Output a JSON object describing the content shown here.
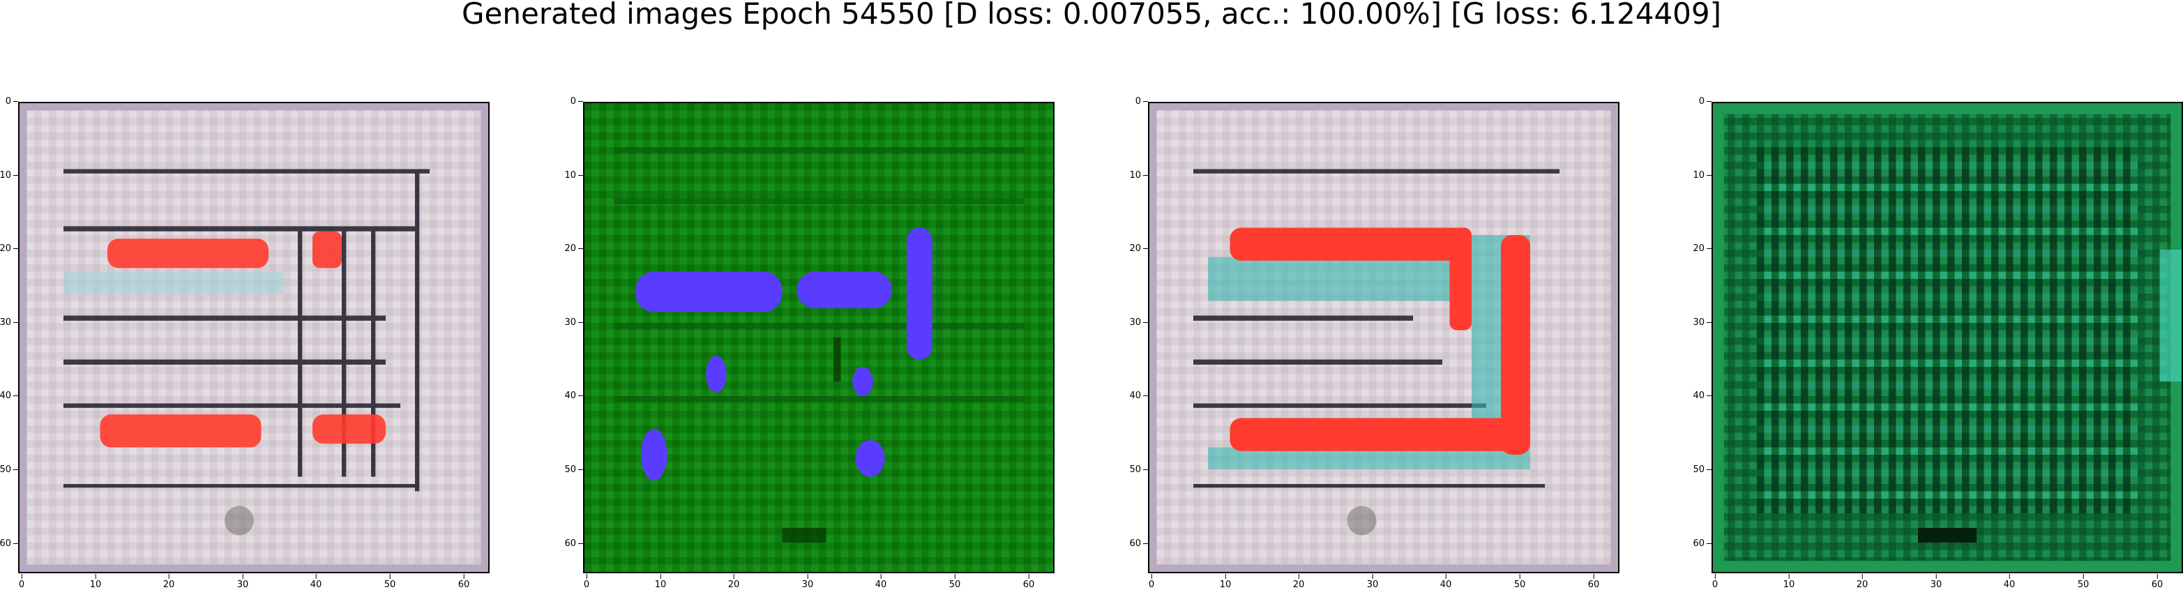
{
  "figure": {
    "title": "Generated images Epoch 54550 [D loss: 0.007055, acc.: 100.00%] [G loss: 6.124409]"
  },
  "axes_ticks": {
    "x": [
      "0",
      "10",
      "20",
      "30",
      "40",
      "50",
      "60"
    ],
    "y": [
      "0",
      "10",
      "20",
      "30",
      "40",
      "50",
      "60"
    ]
  },
  "panels": [
    {
      "description_id": "gen-1",
      "palette": "light-gray",
      "accent": "#ff3b2f"
    },
    {
      "description_id": "gen-2",
      "palette": "green",
      "accent": "#5a3cff"
    },
    {
      "description_id": "gen-3",
      "palette": "light-gray",
      "accent": "#ff3b2f"
    },
    {
      "description_id": "gen-4",
      "palette": "dark-green",
      "accent": "#46d0b8"
    }
  ],
  "colors": {
    "gray_bg": "#d9cfd6",
    "green_bg": "#0f7f0f",
    "dark_green_bg": "#0c6b34",
    "red": "#ff3b2f",
    "blue": "#5a3cff",
    "cyan": "#38b8b0"
  }
}
